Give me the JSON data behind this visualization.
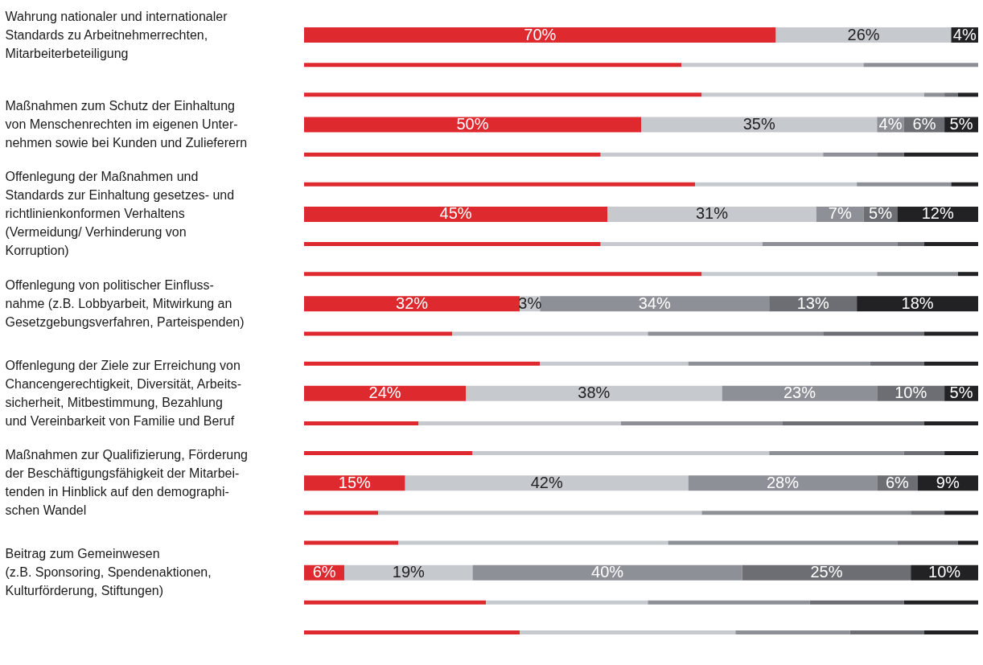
{
  "chart_data": {
    "type": "bar",
    "orientation": "horizontal",
    "stacked": true,
    "legend": false,
    "tick_labels": "y",
    "categories": [
      "Wahrung nationaler und internationaler\nStandards zu Arbeitnehmerrechten,\nMitarbeiterbeteiligung",
      null,
      null,
      "Maßnahmen zum Schutz der Einhaltung\nvon Menschenrechten im eigenen Unter-\nnehmen sowie bei Kunden und Zulieferern",
      null,
      null,
      "Offenlegung der Maßnahmen und\nStandards zur Einhaltung gesetzes- und\nrichtlinienkonformen Verhaltens\n(Vermeidung/ Verhinderung von\nKorruption)",
      null,
      null,
      "Offenlegung von politischer Einfluss-\nnahme (z.B. Lobbyarbeit, Mitwirkung an\nGesetzgebungsverfahren, Parteispenden)",
      null,
      null,
      "Offenlegung der Ziele zur Erreichung von\nChancengerechtigkeit, Diversität, Arbeits-\nsicherheit, Mitbestimmung, Bezahlung\nund Vereinbarkeit von Familie und Beruf",
      null,
      null,
      "Maßnahmen zur Qualifizierung, Förderung\nder Beschäftigungsfähigkeit der Mitarbei-\ntenden in Hinblick auf den demographi-\nschen Wandel",
      null,
      null,
      "Beitrag zum Gemeinwesen\n(z.B. Sponsoring, Spendenaktionen,\nKulturförderung, Stiftungen)",
      null,
      null
    ],
    "series": [
      {
        "color": "#de2a2f",
        "values": [
          70,
          56,
          59,
          50,
          44,
          58,
          45,
          44,
          59,
          32,
          22,
          35,
          24,
          17,
          25,
          15,
          11,
          14,
          6,
          27,
          32
        ],
        "value_labels": [
          "70%",
          null,
          null,
          "50%",
          null,
          null,
          "45%",
          null,
          null,
          "32%",
          null,
          null,
          "24%",
          null,
          null,
          "15%",
          null,
          null,
          "6%",
          null,
          null
        ]
      },
      {
        "color": "#c6c9cd",
        "values": [
          26,
          27,
          33,
          35,
          33,
          24,
          31,
          24,
          26,
          3,
          29,
          22,
          38,
          30,
          44,
          42,
          48,
          40,
          19,
          24,
          32
        ],
        "value_labels": [
          "26%",
          null,
          null,
          "35%",
          null,
          null,
          "31%",
          null,
          null,
          "3%",
          null,
          null,
          "38%",
          null,
          null,
          "42%",
          null,
          null,
          "19%",
          null,
          null
        ]
      },
      {
        "color": "#8e9098",
        "values": [
          0,
          17,
          3,
          4,
          8,
          14,
          7,
          20,
          12,
          34,
          26,
          27,
          23,
          24,
          20,
          28,
          31,
          34,
          40,
          24,
          17
        ],
        "value_labels": [
          null,
          null,
          null,
          "4%",
          null,
          null,
          "7%",
          null,
          null,
          "34%",
          null,
          null,
          "23%",
          null,
          null,
          "28%",
          null,
          null,
          "40%",
          null,
          null
        ]
      },
      {
        "color": "#6d6e73",
        "values": [
          0,
          0,
          2,
          6,
          4,
          0,
          5,
          4,
          0,
          13,
          15,
          8,
          10,
          21,
          6,
          6,
          5,
          9,
          25,
          14,
          11
        ],
        "value_labels": [
          null,
          null,
          null,
          "6%",
          null,
          null,
          "5%",
          null,
          null,
          "13%",
          null,
          null,
          "10%",
          null,
          null,
          "6%",
          null,
          null,
          "25%",
          null,
          null
        ]
      },
      {
        "color": "#222225",
        "values": [
          4,
          0,
          3,
          5,
          11,
          4,
          12,
          8,
          3,
          18,
          8,
          8,
          5,
          8,
          5,
          9,
          5,
          3,
          10,
          11,
          8
        ],
        "value_labels": [
          "4%",
          null,
          null,
          "5%",
          null,
          null,
          "12%",
          null,
          null,
          "18%",
          null,
          null,
          "5%",
          null,
          null,
          "9%",
          null,
          null,
          "10%",
          null,
          null
        ]
      }
    ]
  }
}
